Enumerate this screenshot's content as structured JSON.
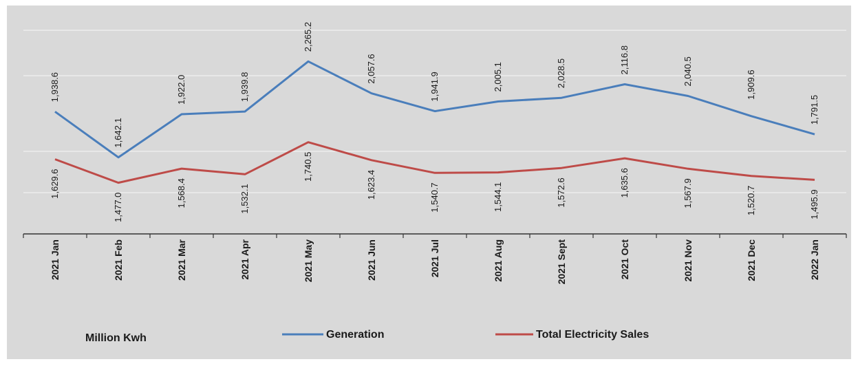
{
  "chart_data": {
    "type": "line",
    "categories": [
      "2021 Jan",
      "2021 Feb",
      "2021 Mar",
      "2021 Apr",
      "2021 May",
      "2021 Jun",
      "2021 Jul",
      "2021 Aug",
      "2021 Sept",
      "2021 Oct",
      "2021 Nov",
      "2021 Dec",
      "2022 Jan"
    ],
    "series": [
      {
        "name": "Generation",
        "color": "#4a7ebb",
        "values": [
          1938.6,
          1642.1,
          1922.0,
          1939.8,
          2265.2,
          2057.6,
          1941.9,
          2005.1,
          2028.5,
          2116.8,
          2040.5,
          1909.6,
          1791.5
        ],
        "labels": [
          "1,938.6",
          "1,642.1",
          "1,922.0",
          "1,939.8",
          "2,265.2",
          "2,057.6",
          "1,941.9",
          "2,005.1",
          "2,028.5",
          "2,116.8",
          "2,040.5",
          "1,909.6",
          "1,791.5"
        ]
      },
      {
        "name": "Total Electricity Sales",
        "color": "#be4b48",
        "values": [
          1629.6,
          1477.0,
          1568.4,
          1532.1,
          1740.5,
          1623.4,
          1540.7,
          1544.1,
          1572.6,
          1635.6,
          1567.9,
          1520.7,
          1495.9
        ],
        "labels": [
          "1,629.6",
          "1,477.0",
          "1,568.4",
          "1,532.1",
          "1,740.5",
          "1,623.4",
          "1,540.7",
          "1,544.1",
          "1,572.6",
          "1,635.6",
          "1,567.9",
          "1,520.7",
          "1,495.9"
        ]
      }
    ],
    "unit_label": "Million Kwh",
    "grid": true,
    "legend_position": "bottom"
  }
}
